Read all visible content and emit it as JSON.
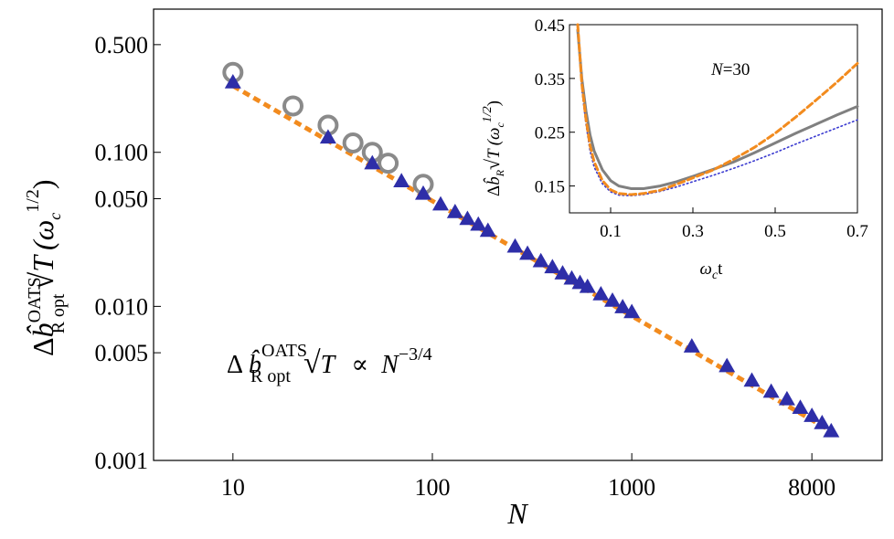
{
  "colors": {
    "triangles": "#2e2ea8",
    "circles": "#8a8a8a",
    "fit": "#f28b1e",
    "inset_solid": "#808080",
    "inset_dashed": "#f28b1e",
    "inset_dotted": "#3a3ad0"
  },
  "chart_data": [
    {
      "type": "scatter",
      "scale": "log-log",
      "xlabel": "N",
      "ylabel_parts": {
        "delta": "Δ",
        "b": "b̂",
        "sup": "OATS",
        "sub": "R opt",
        "sqrt": "√",
        "T": "T",
        "paren": "(ω",
        "c": "c",
        "exp": "1/2",
        "close": ")"
      },
      "xlim": [
        4,
        18000
      ],
      "ylim": [
        0.001,
        0.85
      ],
      "xticks": [
        10,
        100,
        1000,
        8000
      ],
      "xtick_labels": [
        "10",
        "100",
        "1000",
        "8000"
      ],
      "yticks": [
        0.5,
        0.1,
        0.05,
        0.01,
        0.005,
        0.001
      ],
      "ytick_labels": [
        "0.500",
        "0.100",
        "0.050",
        "0.010",
        "0.005",
        "0.001"
      ],
      "annotation": {
        "delta": "Δ",
        "b": "b̂",
        "sup": "OATS",
        "sub": "R opt",
        "sqrt": "√",
        "T": "T",
        "prop": "∝",
        "N": "N",
        "exp": "−3/4"
      },
      "series": [
        {
          "name": "triangles",
          "marker": "triangle",
          "x": [
            10,
            30,
            50,
            70,
            90,
            110,
            130,
            150,
            170,
            190,
            260,
            300,
            350,
            400,
            450,
            500,
            550,
            600,
            700,
            800,
            900,
            1000,
            2000,
            3000,
            4000,
            5000,
            6000,
            7000,
            8000,
            9000,
            10000
          ],
          "y": [
            0.285,
            0.125,
            0.085,
            0.065,
            0.054,
            0.046,
            0.041,
            0.037,
            0.034,
            0.031,
            0.0245,
            0.022,
            0.0197,
            0.018,
            0.0164,
            0.0152,
            0.0142,
            0.0134,
            0.012,
            0.0109,
            0.0099,
            0.0092,
            0.0055,
            0.0041,
            0.0033,
            0.0028,
            0.0025,
            0.0022,
            0.00195,
            0.00175,
            0.00155
          ]
        },
        {
          "name": "circles",
          "marker": "circle",
          "x": [
            10,
            20,
            30,
            40,
            50,
            60,
            90
          ],
          "y": [
            0.33,
            0.2,
            0.15,
            0.115,
            0.1,
            0.085,
            0.062
          ]
        },
        {
          "name": "fit",
          "style": "dashed",
          "x": [
            10,
            10000
          ],
          "y": [
            0.27,
            0.00155
          ]
        }
      ]
    },
    {
      "type": "line",
      "inset": true,
      "xlabel_parts": {
        "omega": "ω",
        "c": "c",
        "t": "t"
      },
      "ylabel_parts": {
        "delta": "Δ",
        "b": "b̂",
        "sub": "R",
        "sqrt": "√",
        "T": "T",
        "paren": "(ω",
        "c": "c",
        "exp": "1/2",
        "close": ")"
      },
      "xlim": [
        0,
        0.7
      ],
      "ylim": [
        0.1,
        0.45
      ],
      "xticks": [
        0.1,
        0.3,
        0.5,
        0.7
      ],
      "xtick_labels": [
        "0.1",
        "0.3",
        "0.5",
        "0.7"
      ],
      "yticks": [
        0.15,
        0.25,
        0.35,
        0.45
      ],
      "ytick_labels": [
        "0.15",
        "0.25",
        "0.35",
        "0.45"
      ],
      "annotation": {
        "N": "N",
        "value": "=30"
      },
      "series": [
        {
          "name": "solid",
          "style": "solid",
          "x": [
            0.02,
            0.03,
            0.04,
            0.05,
            0.06,
            0.08,
            0.1,
            0.12,
            0.15,
            0.18,
            0.22,
            0.26,
            0.3,
            0.35,
            0.4,
            0.45,
            0.5,
            0.55,
            0.6,
            0.65,
            0.7
          ],
          "y": [
            0.44,
            0.35,
            0.29,
            0.245,
            0.215,
            0.18,
            0.16,
            0.15,
            0.145,
            0.145,
            0.15,
            0.158,
            0.168,
            0.181,
            0.195,
            0.212,
            0.23,
            0.248,
            0.265,
            0.282,
            0.298
          ]
        },
        {
          "name": "dashed",
          "style": "dashed",
          "x": [
            0.02,
            0.03,
            0.04,
            0.05,
            0.06,
            0.08,
            0.1,
            0.12,
            0.15,
            0.18,
            0.22,
            0.26,
            0.3,
            0.35,
            0.4,
            0.45,
            0.5,
            0.55,
            0.6,
            0.65,
            0.7
          ],
          "y": [
            0.45,
            0.34,
            0.275,
            0.225,
            0.195,
            0.16,
            0.143,
            0.136,
            0.134,
            0.136,
            0.142,
            0.153,
            0.165,
            0.18,
            0.2,
            0.222,
            0.248,
            0.278,
            0.31,
            0.343,
            0.378
          ]
        },
        {
          "name": "dotted",
          "style": "dotted",
          "x": [
            0.02,
            0.03,
            0.04,
            0.05,
            0.06,
            0.08,
            0.1,
            0.12,
            0.15,
            0.18,
            0.22,
            0.26,
            0.3,
            0.35,
            0.4,
            0.45,
            0.5,
            0.55,
            0.6,
            0.65,
            0.7
          ],
          "y": [
            0.44,
            0.33,
            0.265,
            0.215,
            0.185,
            0.154,
            0.139,
            0.133,
            0.132,
            0.134,
            0.14,
            0.148,
            0.158,
            0.17,
            0.183,
            0.197,
            0.212,
            0.228,
            0.243,
            0.258,
            0.273
          ]
        }
      ]
    }
  ]
}
